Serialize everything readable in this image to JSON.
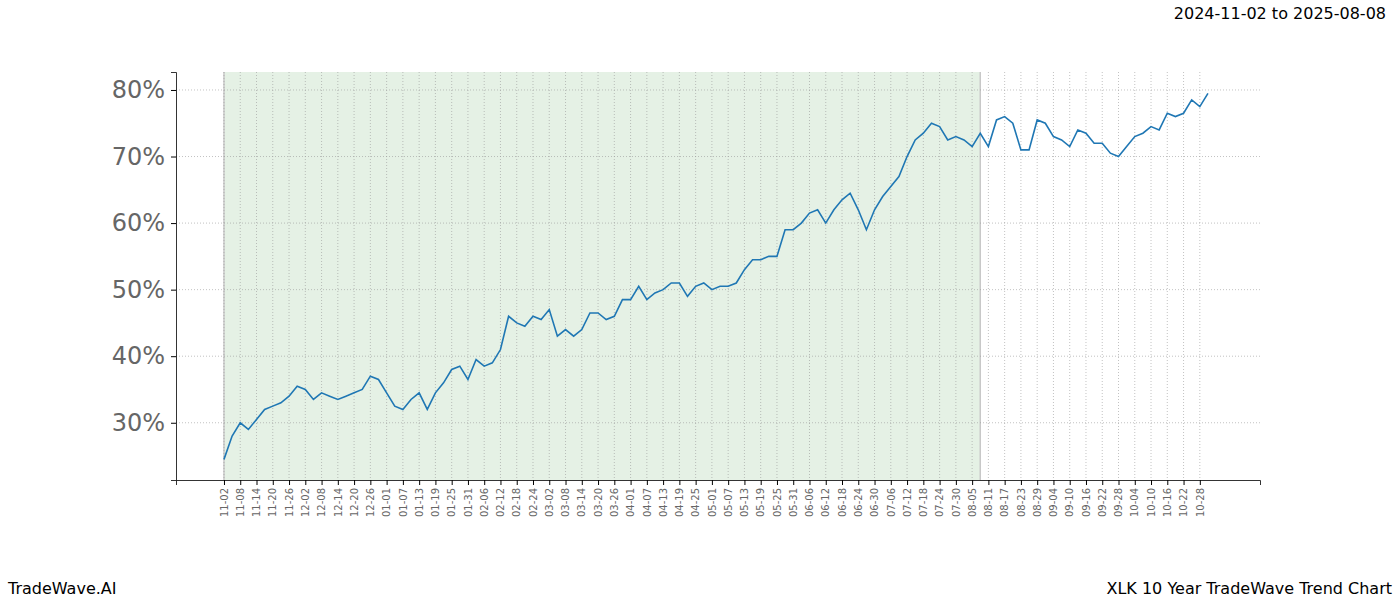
{
  "chart_data": {
    "type": "line",
    "title": "2024-11-02 to 2025-08-08",
    "annotations": [
      "TradeWave.AI",
      "XLK 10 Year TradeWave Trend Chart"
    ],
    "categories": [
      "11-02",
      null,
      "11-08",
      null,
      "11-14",
      null,
      "11-20",
      null,
      "11-26",
      null,
      "12-02",
      null,
      "12-08",
      null,
      "12-14",
      null,
      "12-20",
      null,
      "12-26",
      null,
      "01-01",
      null,
      "01-07",
      null,
      "01-13",
      null,
      "01-19",
      null,
      "01-25",
      null,
      "01-31",
      null,
      "02-06",
      null,
      "02-12",
      null,
      "02-18",
      null,
      "02-24",
      null,
      "03-02",
      null,
      "03-08",
      null,
      "03-14",
      null,
      "03-20",
      null,
      "03-26",
      null,
      "04-01",
      null,
      "04-07",
      null,
      "04-13",
      null,
      "04-19",
      null,
      "04-25",
      null,
      "05-01",
      null,
      "05-07",
      null,
      "05-13",
      null,
      "05-19",
      null,
      "05-25",
      null,
      "05-31",
      null,
      "06-06",
      null,
      "06-12",
      null,
      "06-18",
      null,
      "06-24",
      null,
      "06-30",
      null,
      "07-06",
      null,
      "07-12",
      null,
      "07-18",
      null,
      "07-24",
      null,
      "07-30",
      null,
      "08-05",
      null,
      "08-11",
      null,
      "08-17",
      null,
      "08-23",
      null,
      "08-29",
      null,
      "09-04",
      null,
      "09-10",
      null,
      "09-16",
      null,
      "09-22",
      null,
      "09-28",
      null,
      "10-04",
      null,
      "10-10",
      null,
      "10-16",
      null,
      "10-22",
      null,
      "10-28",
      null
    ],
    "values": [
      24.5,
      28,
      30,
      29,
      30.5,
      32,
      32.5,
      33,
      34,
      35.5,
      35,
      33.5,
      34.5,
      34,
      33.5,
      34,
      34.5,
      35,
      37,
      36.5,
      34.5,
      32.5,
      32,
      33.5,
      34.5,
      32,
      34.5,
      36,
      38,
      38.5,
      36.5,
      39.5,
      38.5,
      39,
      41,
      46,
      45,
      44.5,
      46,
      45.5,
      47,
      43,
      44,
      43,
      44,
      46.5,
      46.5,
      45.5,
      46,
      48.5,
      48.5,
      50.5,
      48.5,
      49.5,
      50,
      51,
      51,
      49,
      50.5,
      51,
      50,
      50.5,
      50.5,
      51,
      53,
      54.5,
      54.5,
      55,
      55,
      59,
      59,
      60,
      61.5,
      62,
      60,
      62,
      63.5,
      64.5,
      62,
      59,
      62,
      64,
      65.5,
      67,
      70,
      72.5,
      73.5,
      75,
      74.5,
      72.5,
      73,
      72.5,
      71.5,
      73.5,
      71.5,
      75.5,
      76,
      75,
      71,
      71,
      75.5,
      75,
      73,
      72.5,
      71.5,
      74,
      73.5,
      72,
      72,
      70.5,
      70,
      71.5,
      73,
      73.5,
      74.5,
      74,
      76.5,
      76,
      76.5,
      78.5,
      77.5,
      79.5
    ],
    "color": "#1f77b4",
    "shaded_x": [
      0,
      93
    ],
    "xlim": [
      -5.9,
      127.4
    ],
    "ylim": [
      21.4,
      82.7
    ],
    "yticks": [
      {
        "value": 30,
        "label": "30%"
      },
      {
        "value": 40,
        "label": "40%"
      },
      {
        "value": 50,
        "label": "50%"
      },
      {
        "value": 60,
        "label": "60%"
      },
      {
        "value": 70,
        "label": "70%"
      },
      {
        "value": 80,
        "label": "80%"
      }
    ],
    "grid": true
  }
}
